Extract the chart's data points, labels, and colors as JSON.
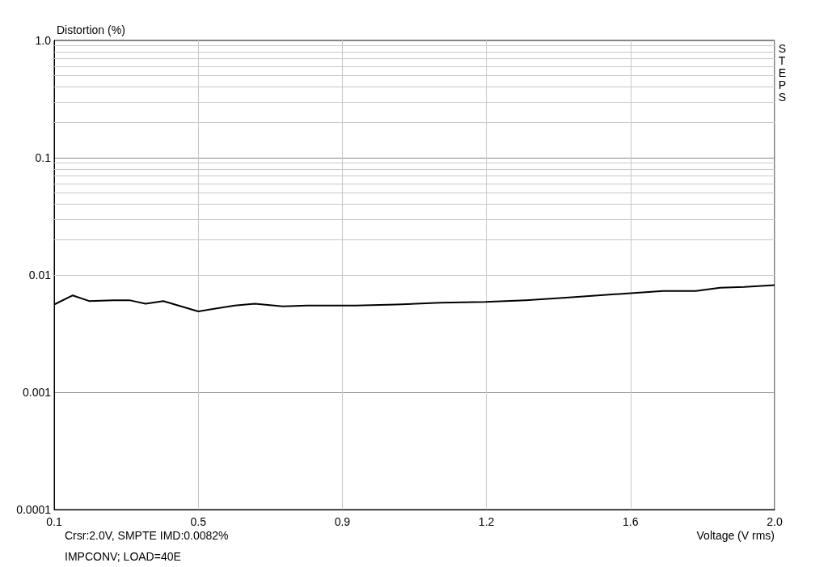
{
  "chart_data": {
    "type": "line",
    "xlabel": "Voltage (V rms)",
    "ylabel": "Distortion (%)",
    "annotations": [
      "STEPS",
      "Crsr:2.0V, SMPTE IMD:0.0082%",
      "IMPCONV; LOAD=40E"
    ],
    "x": [
      0.1,
      0.149,
      0.192,
      0.256,
      0.298,
      0.341,
      0.388,
      0.48,
      0.576,
      0.629,
      0.703,
      0.767,
      0.895,
      1.002,
      1.119,
      1.237,
      1.343,
      1.45,
      1.621,
      1.706,
      1.792,
      1.856,
      1.92,
      2.0
    ],
    "series": [
      {
        "color": "#000000",
        "values": [
          0.0056,
          0.0067,
          0.006,
          0.0061,
          0.0061,
          0.0057,
          0.006,
          0.0049,
          0.0055,
          0.0057,
          0.0054,
          0.0055,
          0.0055,
          0.0056,
          0.0058,
          0.0059,
          0.0061,
          0.0064,
          0.007,
          0.0073,
          0.0073,
          0.0078,
          0.0079,
          0.0082
        ]
      }
    ],
    "xlim": [
      0.1,
      2.0
    ],
    "xticks": [
      0.1,
      {
        "value": 0.48,
        "label": "0.5"
      },
      {
        "value": 0.86,
        "label": "0.9"
      },
      {
        "value": 1.24,
        "label": "1.2"
      },
      {
        "value": 1.62,
        "label": "1.6"
      },
      {
        "value": 2,
        "label": "2.0"
      }
    ],
    "ylim": [
      0.0001,
      1
    ],
    "yticks": [
      0.0001,
      0.001,
      0.01,
      0.1,
      {
        "value": 1,
        "label": "1.0"
      }
    ],
    "log": "y",
    "grid": true,
    "marker": "none",
    "line_style": "solid"
  }
}
